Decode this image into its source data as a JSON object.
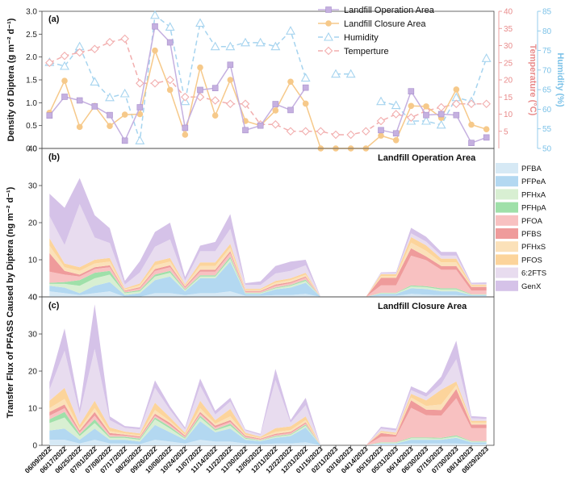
{
  "dates": [
    "06/09/2022",
    "06/17/2022",
    "06/25/2022",
    "07/01/2022",
    "07/08/2022",
    "07/17/2022",
    "08/25/2022",
    "09/26/2022",
    "10/08/2022",
    "10/24/2022",
    "11/07/2022",
    "11/14/2022",
    "11/22/2022",
    "11/30/2022",
    "12/05/2022",
    "12/11/2022",
    "12/22/2022",
    "12/31/2022",
    "01/15/2023",
    "02/11/2023",
    "03/16/2023",
    "04/14/2023",
    "05/15/2023",
    "05/31/2023",
    "06/14/2023",
    "06/30/2023",
    "07/15/2023",
    "07/30/2023",
    "08/14/2023",
    "08/29/2023"
  ],
  "colors": {
    "operation": "#c5b0e0",
    "closure": "#f6c98a",
    "humidity": "#a6d4ef",
    "temperature": "#f2aeae",
    "temp_axis": "#e88b8b",
    "hum_axis": "#7cc2e8",
    "stack": [
      "#d6e9f5",
      "#b3d8f1",
      "#d8efd2",
      "#9fe0a9",
      "#f8c1c1",
      "#ef9b9b",
      "#fbe1b9",
      "#fcd49b",
      "#e8dcef",
      "#d5c2e8"
    ]
  },
  "chart_data": [
    {
      "type": "line",
      "panel_label": "(a)",
      "ylabel": "Density of Diptera (g m⁻² d⁻¹)",
      "ylim": [
        0,
        3.0
      ],
      "yticks": [
        "0.0",
        "0.5",
        "1.0",
        "1.5",
        "2.0",
        "2.5",
        "3.0"
      ],
      "y2label": "Temperature (°C)",
      "y2lim": [
        0,
        40
      ],
      "y2ticks": [
        "5",
        "10",
        "15",
        "20",
        "25",
        "30",
        "35",
        "40"
      ],
      "y3label": "Humidity (%)",
      "y3lim": [
        50,
        85
      ],
      "y3ticks": [
        "50",
        "55",
        "60",
        "65",
        "70",
        "75",
        "80",
        "85"
      ],
      "legend": [
        "Landfill Operation Area",
        "Landfill Closure Area",
        "Humidity",
        "Temperture"
      ],
      "series": [
        {
          "name": "Landfill Operation Area",
          "axis": "left",
          "values": [
            0.72,
            1.13,
            1.05,
            0.92,
            0.73,
            0.17,
            0.9,
            2.67,
            2.32,
            0.45,
            1.28,
            1.32,
            1.83,
            0.4,
            0.5,
            0.97,
            0.84,
            1.33,
            null,
            null,
            null,
            null,
            0.4,
            0.33,
            1.25,
            0.73,
            0.75,
            0.73,
            0.12,
            0.24
          ]
        },
        {
          "name": "Landfill Closure Area",
          "axis": "left",
          "values": [
            0.78,
            1.48,
            0.47,
            0.93,
            0.49,
            0.74,
            0.75,
            2.14,
            1.28,
            0.3,
            1.77,
            0.72,
            1.5,
            0.6,
            0.5,
            0.83,
            1.46,
            0.98,
            0.0,
            0.0,
            0.0,
            0.0,
            0.28,
            0.18,
            0.93,
            0.92,
            0.67,
            1.29,
            0.52,
            0.42
          ]
        },
        {
          "name": "Humidity",
          "axis": "right2",
          "values": [
            72,
            71,
            76,
            67,
            63,
            64,
            52,
            84,
            81,
            62,
            82,
            76,
            76,
            77,
            77,
            76,
            80,
            68,
            null,
            69,
            69,
            null,
            62,
            61,
            57,
            57,
            56,
            63,
            62,
            73
          ]
        },
        {
          "name": "Temperture",
          "axis": "right1",
          "values": [
            25,
            27,
            28,
            29,
            31,
            32,
            19,
            19,
            20,
            15,
            15,
            14,
            13,
            13,
            7,
            7,
            5,
            5,
            5,
            4,
            4,
            5,
            8,
            10,
            9,
            11,
            12,
            13,
            13,
            13
          ]
        }
      ]
    },
    {
      "type": "area",
      "panel_label": "(b)",
      "title": "Landfill Operation Area",
      "ylim": [
        0,
        40
      ],
      "yticks": [
        "0",
        "10",
        "20",
        "30",
        "40"
      ],
      "legend": [
        "PFBA",
        "PFPeA",
        "PFHxA",
        "PFHpA",
        "PFOA",
        "PFBS",
        "PFHxS",
        "PFOS",
        "6:2FTS",
        "GenX"
      ],
      "series": [
        {
          "name": "PFBA",
          "values": [
            1.5,
            1,
            0.5,
            1,
            1.5,
            0,
            0,
            1,
            1,
            0.5,
            1,
            1,
            1.5,
            0.3,
            0.3,
            0.5,
            0.5,
            0.8,
            0,
            0,
            0,
            0,
            0.3,
            0.3,
            0.8,
            0.6,
            0.5,
            0.5,
            0.2,
            0.2
          ]
        },
        {
          "name": "PFPeA",
          "values": [
            1.5,
            1.5,
            0.5,
            2,
            2.5,
            0.5,
            1,
            3.5,
            4.5,
            1,
            4,
            4,
            8,
            0.5,
            0.5,
            1.5,
            2,
            3,
            0,
            0,
            0,
            0,
            0.5,
            0.5,
            1.5,
            1.5,
            1,
            1,
            0.3,
            0.3
          ]
        },
        {
          "name": "PFHxA",
          "values": [
            0.5,
            1,
            2,
            2,
            2,
            0.5,
            0.5,
            1,
            1,
            0.3,
            0.5,
            0.5,
            0.8,
            0.2,
            0.2,
            0.3,
            0.5,
            0.5,
            0,
            0,
            0,
            0,
            0.2,
            0.2,
            0.5,
            0.5,
            0.5,
            0.5,
            0.1,
            0.1
          ]
        },
        {
          "name": "PFHpA",
          "values": [
            0.3,
            0.5,
            1.5,
            1.5,
            1,
            0.2,
            0.3,
            0.5,
            0.5,
            0.2,
            0.3,
            0.3,
            0.5,
            0.1,
            0.1,
            0.2,
            0.2,
            0.3,
            0,
            0,
            0,
            0,
            0.1,
            0.1,
            0.3,
            0.3,
            0.3,
            0.3,
            0.1,
            0.1
          ]
        },
        {
          "name": "PFOA",
          "values": [
            3,
            2,
            1,
            1,
            1,
            0.3,
            0.5,
            1,
            1,
            0.5,
            1,
            1,
            1,
            0.3,
            0.3,
            0.5,
            0.5,
            0.6,
            0,
            0,
            0,
            0,
            2,
            2,
            8,
            7,
            5,
            5,
            1,
            1
          ]
        },
        {
          "name": "PFBS",
          "values": [
            5,
            1,
            0.5,
            0.5,
            0.5,
            0.2,
            0.3,
            0.5,
            0.5,
            0.3,
            0.5,
            0.5,
            0.5,
            0.2,
            0.2,
            0.3,
            0.3,
            0.3,
            0,
            0,
            0,
            0,
            2,
            2,
            2,
            1,
            1,
            1,
            1,
            1
          ]
        },
        {
          "name": "PFHxS",
          "values": [
            2,
            1,
            1,
            1,
            1,
            0.3,
            0.5,
            1,
            1,
            0.3,
            1,
            1,
            1,
            0.3,
            0.3,
            0.5,
            0.5,
            0.5,
            0,
            0,
            0,
            0,
            0.5,
            0.5,
            1.5,
            1.5,
            1,
            1,
            0.3,
            0.3
          ]
        },
        {
          "name": "PFOS",
          "values": [
            2,
            1,
            1,
            1,
            1,
            0.3,
            0.5,
            1,
            1,
            0.3,
            1,
            1,
            1,
            0.3,
            0.3,
            0.5,
            0.5,
            0.5,
            0,
            0,
            0,
            0,
            0.5,
            0.5,
            1.5,
            1.5,
            1,
            1,
            0.3,
            0.3
          ]
        },
        {
          "name": "6:2FTS",
          "values": [
            6,
            5,
            17,
            6,
            4,
            1,
            3,
            4,
            5,
            1,
            3,
            3,
            4,
            1,
            1,
            2,
            2,
            2,
            0,
            0,
            0,
            0,
            0.3,
            0.3,
            1,
            1,
            0.8,
            0.8,
            0.2,
            0.2
          ]
        },
        {
          "name": "GenX",
          "values": [
            6,
            10,
            7,
            6,
            4,
            1,
            3,
            4,
            4.5,
            1,
            1.5,
            2.5,
            4,
            0.5,
            1,
            2,
            2.5,
            1.5,
            0,
            0,
            0,
            0,
            0.2,
            0.3,
            1.5,
            1.3,
            1,
            1,
            0.3,
            0.4
          ]
        }
      ]
    },
    {
      "type": "area",
      "panel_label": "(c)",
      "title": "Landfill Closure Area",
      "ylim": [
        0,
        40
      ],
      "yticks": [
        "0",
        "10",
        "20",
        "30",
        "40"
      ],
      "series": [
        {
          "name": "PFBA",
          "values": [
            1.5,
            1.5,
            0.5,
            1.5,
            0.5,
            0.5,
            0.3,
            1.5,
            1,
            0.5,
            1.5,
            1,
            1,
            0.5,
            0.3,
            0.5,
            0.5,
            0.8,
            0,
            0,
            0,
            0,
            0.2,
            0.2,
            0.5,
            0.5,
            0.5,
            0.5,
            0.3,
            0.3
          ]
        },
        {
          "name": "PFPeA",
          "values": [
            2.5,
            3,
            1,
            3,
            1,
            1,
            0.7,
            4,
            2.5,
            1,
            5,
            2.5,
            3.5,
            1,
            0.8,
            1.5,
            2,
            4,
            0,
            0,
            0,
            0,
            0.3,
            0.3,
            1,
            1,
            1,
            1.5,
            0.5,
            0.5
          ]
        },
        {
          "name": "PFHxA",
          "values": [
            2,
            3,
            1,
            1.5,
            0.5,
            0.5,
            0.5,
            1.5,
            1,
            0.3,
            1,
            0.5,
            0.8,
            0.3,
            0.2,
            0.3,
            0.3,
            0.5,
            0,
            0,
            0,
            0,
            0.2,
            0.2,
            0.4,
            0.4,
            0.3,
            0.4,
            0.2,
            0.2
          ]
        },
        {
          "name": "PFHpA",
          "values": [
            1,
            1.5,
            0.5,
            1,
            0.3,
            0.3,
            0.3,
            0.5,
            0.5,
            0.2,
            0.5,
            0.3,
            0.5,
            0.2,
            0.1,
            0.2,
            0.2,
            0.3,
            0,
            0,
            0,
            0,
            0.1,
            0.1,
            0.2,
            0.2,
            0.2,
            0.3,
            0.1,
            0.1
          ]
        },
        {
          "name": "PFOA",
          "values": [
            1,
            1,
            0.5,
            1,
            0.5,
            0.3,
            0.3,
            0.5,
            0.5,
            0.3,
            0.5,
            0.5,
            0.5,
            0.3,
            0.2,
            0.3,
            0.3,
            0.3,
            0,
            0,
            0,
            0,
            1.5,
            1.5,
            8,
            6,
            6,
            10,
            3.5,
            3.5
          ]
        },
        {
          "name": "PFBS",
          "values": [
            1,
            1,
            0.5,
            1,
            0.5,
            0.3,
            0.3,
            0.5,
            0.5,
            0.3,
            0.5,
            0.5,
            0.5,
            0.3,
            0.2,
            0.3,
            0.3,
            0.3,
            0,
            0,
            0,
            0,
            1,
            0.5,
            2,
            1.5,
            1.5,
            2.5,
            1,
            1
          ]
        },
        {
          "name": "PFHxS",
          "values": [
            1,
            1.5,
            0.5,
            1,
            0.5,
            0.3,
            0.3,
            1,
            0.5,
            0.3,
            1,
            0.5,
            1,
            0.3,
            0.2,
            0.5,
            0.5,
            0.6,
            0,
            0,
            0,
            0,
            0.3,
            0.3,
            0.8,
            1,
            1.5,
            1,
            0.5,
            0.5
          ]
        },
        {
          "name": "PFOS",
          "values": [
            2,
            3,
            1,
            2,
            1,
            0.5,
            0.5,
            2,
            1,
            0.5,
            2,
            1,
            2,
            0.5,
            0.3,
            1,
            1,
            1,
            0,
            0,
            0,
            0,
            0.3,
            0.3,
            1,
            1.5,
            4,
            1,
            0.5,
            0.5
          ]
        },
        {
          "name": "6:2FTS",
          "values": [
            3,
            10,
            3,
            14,
            2,
            1,
            1.1,
            4,
            2,
            0.9,
            4,
            1.5,
            2,
            0.6,
            0.5,
            13,
            1,
            3,
            0,
            0,
            0,
            0,
            0.6,
            0.6,
            1,
            1,
            1.5,
            6,
            0.7,
            0.5
          ]
        },
        {
          "name": "GenX",
          "values": [
            2,
            6,
            1.5,
            12,
            1,
            0.5,
            0.5,
            2,
            1,
            0.5,
            2,
            1,
            1,
            0.3,
            0.3,
            3,
            0.7,
            2,
            0,
            0,
            0,
            0,
            0.5,
            0.5,
            1,
            1,
            2,
            5,
            0.6,
            0.5
          ]
        }
      ]
    }
  ],
  "shared_ylabel": "Transfer Flux of PFASS Caused by Diptera (ng m⁻² d⁻¹)"
}
